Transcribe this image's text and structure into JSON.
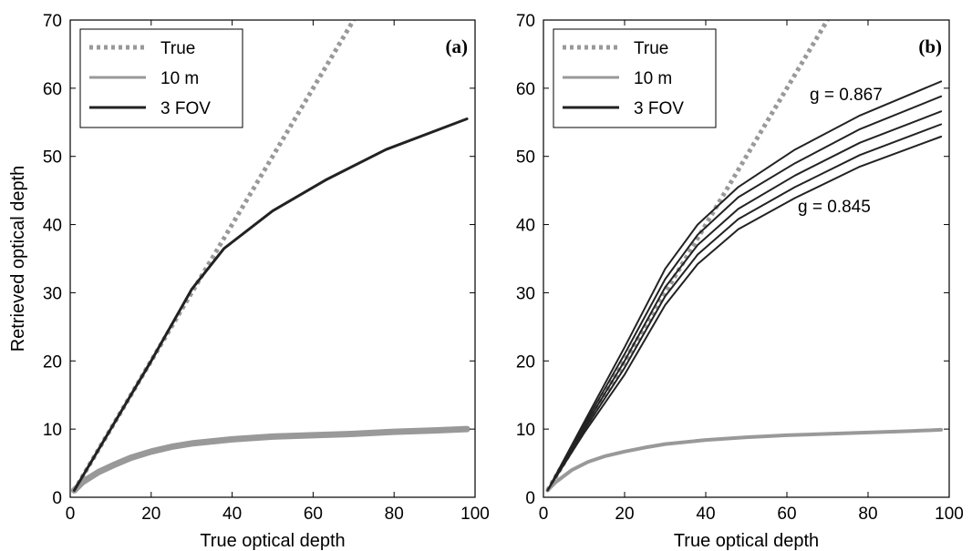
{
  "chart_data": [
    {
      "type": "line",
      "panel_label": "(a)",
      "xlabel": "True optical depth",
      "ylabel": "Retrieved optical depth",
      "xlim": [
        0,
        100
      ],
      "ylim": [
        0,
        70
      ],
      "xticks": [
        0,
        20,
        40,
        60,
        80,
        100
      ],
      "yticks": [
        0,
        10,
        20,
        30,
        40,
        50,
        60,
        70
      ],
      "grid": false,
      "legend": {
        "placement": "top-left",
        "entries": [
          "True",
          "10 m",
          "3 FOV"
        ]
      },
      "annotations": [],
      "series": [
        {
          "name": "True",
          "style": "dotted",
          "color": "#999999",
          "width": 5,
          "x": [
            1,
            70
          ],
          "y": [
            1,
            70
          ]
        },
        {
          "name": "10 m",
          "style": "solid",
          "color": "#999999",
          "width": 7,
          "x": [
            1,
            3,
            7,
            11,
            15,
            20,
            25,
            30,
            40,
            50,
            60,
            70,
            80,
            90,
            98
          ],
          "y": [
            1,
            2.2,
            3.7,
            4.8,
            5.8,
            6.7,
            7.4,
            7.9,
            8.5,
            8.9,
            9.1,
            9.3,
            9.6,
            9.8,
            10.0
          ]
        },
        {
          "name": "3 FOV",
          "style": "solid",
          "color": "#222222",
          "width": 3,
          "x": [
            1,
            10,
            20,
            30,
            38,
            50,
            63,
            78,
            98
          ],
          "y": [
            1,
            10,
            20,
            30.5,
            36.5,
            42,
            46.5,
            51,
            55.5
          ]
        }
      ]
    },
    {
      "type": "line",
      "panel_label": "(b)",
      "xlabel": "True optical depth",
      "ylabel": "",
      "xlim": [
        0,
        100
      ],
      "ylim": [
        0,
        70
      ],
      "xticks": [
        0,
        20,
        40,
        60,
        80,
        100
      ],
      "yticks": [
        0,
        10,
        20,
        30,
        40,
        50,
        60,
        70
      ],
      "grid": false,
      "legend": {
        "placement": "top-left",
        "entries": [
          "True",
          "10 m",
          "3 FOV"
        ]
      },
      "annotations": [
        "g = 0.867",
        "g = 0.845"
      ],
      "series": [
        {
          "name": "True",
          "style": "dotted",
          "color": "#999999",
          "width": 5,
          "x": [
            1,
            70
          ],
          "y": [
            1,
            70
          ]
        },
        {
          "name": "10 m",
          "style": "solid",
          "color": "#999999",
          "width": 4,
          "x": [
            1,
            3,
            7,
            11,
            15,
            20,
            25,
            30,
            40,
            50,
            60,
            70,
            80,
            90,
            98
          ],
          "y": [
            1,
            2.2,
            4.0,
            5.2,
            6.0,
            6.7,
            7.3,
            7.8,
            8.4,
            8.8,
            9.1,
            9.3,
            9.5,
            9.7,
            9.9
          ]
        },
        {
          "name": "3 FOV",
          "style": "solid",
          "color": "#222222",
          "width": 2,
          "x": [
            1,
            10,
            20,
            30,
            38,
            48,
            62,
            78,
            98
          ],
          "y": [
            1,
            11,
            22,
            33.5,
            40,
            45.5,
            51,
            56,
            61
          ]
        },
        {
          "name": "3 FOV",
          "style": "solid",
          "color": "#222222",
          "width": 2,
          "x": [
            1,
            10,
            20,
            30,
            38,
            48,
            62,
            78,
            98
          ],
          "y": [
            1,
            10.6,
            21,
            32,
            38.5,
            44,
            49,
            54,
            58.8
          ]
        },
        {
          "name": "3 FOV",
          "style": "solid",
          "color": "#222222",
          "width": 2,
          "x": [
            1,
            10,
            20,
            30,
            38,
            48,
            62,
            78,
            98
          ],
          "y": [
            1,
            10.2,
            20,
            30.8,
            37,
            42.3,
            47.2,
            52,
            56.6
          ]
        },
        {
          "name": "3 FOV",
          "style": "solid",
          "color": "#222222",
          "width": 2,
          "x": [
            1,
            10,
            20,
            30,
            38,
            48,
            62,
            78,
            98
          ],
          "y": [
            1,
            9.8,
            19,
            29.5,
            35.6,
            40.8,
            45.5,
            50.2,
            54.7
          ]
        },
        {
          "name": "3 FOV",
          "style": "solid",
          "color": "#222222",
          "width": 2,
          "x": [
            1,
            10,
            20,
            30,
            38,
            48,
            62,
            78,
            98
          ],
          "y": [
            1,
            9.4,
            18,
            28.2,
            34.2,
            39.3,
            43.9,
            48.5,
            52.9
          ]
        }
      ]
    }
  ]
}
